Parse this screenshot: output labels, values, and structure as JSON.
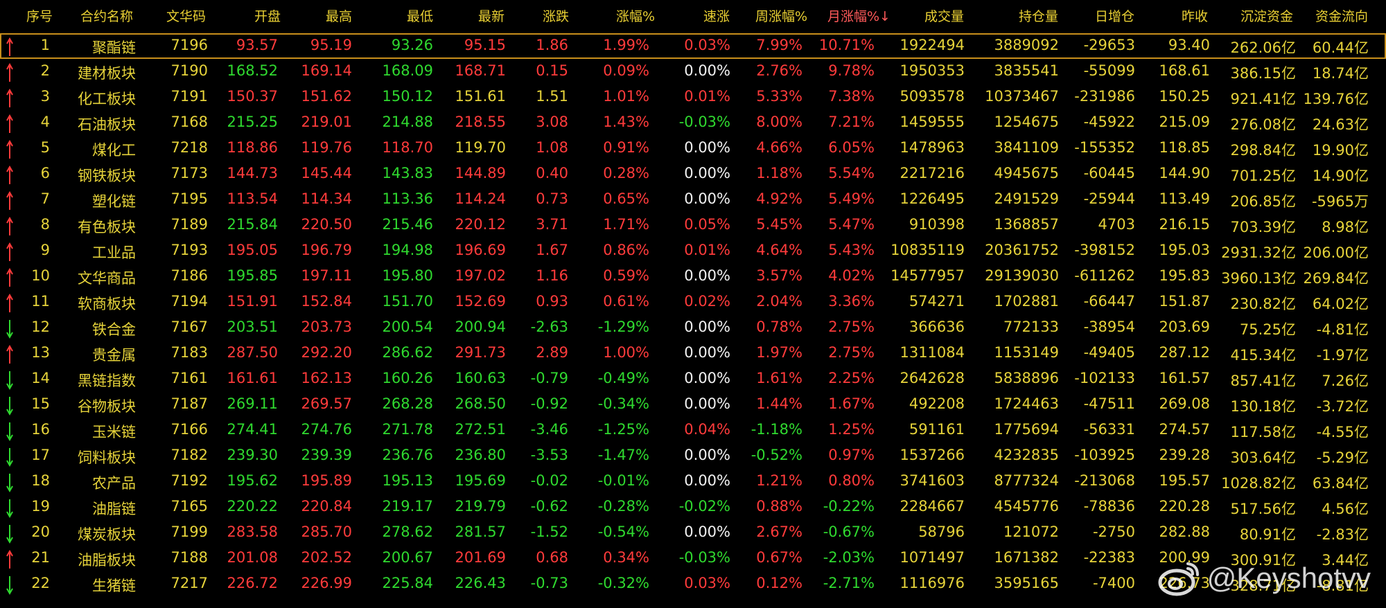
{
  "columns": [
    "序号",
    "合约名称",
    "文华码",
    "开盘",
    "最高",
    "最低",
    "最新",
    "涨跌",
    "涨幅%",
    "速涨",
    "周涨幅%",
    "月涨幅%↓",
    "成交量",
    "持仓量",
    "日增仓",
    "昨收",
    "沉淀资金",
    "资金流向"
  ],
  "rows": [
    {
      "dir": "up",
      "no": "1",
      "name": "聚酯链",
      "code": "7196",
      "open": "93.57",
      "high": "95.19",
      "low": "93.26",
      "last": "95.15",
      "chg": "1.86",
      "pct": "1.99%",
      "speed": "0.03%",
      "week": "7.99%",
      "month": "10.71%",
      "vol": "1922494",
      "oi": "3889092",
      "inc": "-29653",
      "prev": "93.40",
      "cap": "262.06亿",
      "flow": "60.44亿",
      "c": {
        "open": "r",
        "high": "r",
        "low": "g",
        "last": "r",
        "chg": "r",
        "pct": "r",
        "speed": "r",
        "week": "r",
        "month": "r"
      }
    },
    {
      "dir": "up",
      "no": "2",
      "name": "建材板块",
      "code": "7190",
      "open": "168.52",
      "high": "169.14",
      "low": "168.09",
      "last": "168.71",
      "chg": "0.15",
      "pct": "0.09%",
      "speed": "0.00%",
      "week": "2.76%",
      "month": "9.78%",
      "vol": "1950353",
      "oi": "3835541",
      "inc": "-55099",
      "prev": "168.61",
      "cap": "386.15亿",
      "flow": "18.74亿",
      "c": {
        "open": "g",
        "high": "r",
        "low": "g",
        "last": "r",
        "chg": "r",
        "pct": "r",
        "speed": "w",
        "week": "r",
        "month": "r"
      }
    },
    {
      "dir": "up",
      "no": "3",
      "name": "化工板块",
      "code": "7191",
      "open": "150.37",
      "high": "151.62",
      "low": "150.12",
      "last": "151.61",
      "chg": "1.51",
      "pct": "1.01%",
      "speed": "0.01%",
      "week": "5.33%",
      "month": "7.38%",
      "vol": "5093578",
      "oi": "10373467",
      "inc": "-231986",
      "prev": "150.25",
      "cap": "921.41亿",
      "flow": "139.76亿",
      "c": {
        "open": "r",
        "high": "r",
        "low": "g",
        "last": "y",
        "chg": "y",
        "pct": "r",
        "speed": "r",
        "week": "r",
        "month": "r"
      }
    },
    {
      "dir": "up",
      "no": "4",
      "name": "石油板块",
      "code": "7168",
      "open": "215.25",
      "high": "219.01",
      "low": "214.88",
      "last": "218.55",
      "chg": "3.08",
      "pct": "1.43%",
      "speed": "-0.03%",
      "week": "8.00%",
      "month": "7.21%",
      "vol": "1459555",
      "oi": "1254675",
      "inc": "-45922",
      "prev": "215.09",
      "cap": "276.08亿",
      "flow": "24.63亿",
      "c": {
        "open": "g",
        "high": "r",
        "low": "g",
        "last": "r",
        "chg": "r",
        "pct": "r",
        "speed": "g",
        "week": "r",
        "month": "r"
      }
    },
    {
      "dir": "up",
      "no": "5",
      "name": "煤化工",
      "code": "7218",
      "open": "118.86",
      "high": "119.76",
      "low": "118.70",
      "last": "119.70",
      "chg": "1.08",
      "pct": "0.91%",
      "speed": "0.00%",
      "week": "4.66%",
      "month": "6.05%",
      "vol": "1478963",
      "oi": "3841109",
      "inc": "-155352",
      "prev": "118.85",
      "cap": "298.84亿",
      "flow": "19.90亿",
      "c": {
        "open": "r",
        "high": "r",
        "low": "r",
        "last": "y",
        "chg": "r",
        "pct": "r",
        "speed": "w",
        "week": "r",
        "month": "r"
      }
    },
    {
      "dir": "up",
      "no": "6",
      "name": "钢铁板块",
      "code": "7173",
      "open": "144.73",
      "high": "145.44",
      "low": "143.83",
      "last": "144.89",
      "chg": "0.40",
      "pct": "0.28%",
      "speed": "0.00%",
      "week": "1.18%",
      "month": "5.54%",
      "vol": "2217216",
      "oi": "4945675",
      "inc": "-60445",
      "prev": "144.90",
      "cap": "701.25亿",
      "flow": "14.90亿",
      "c": {
        "open": "r",
        "high": "r",
        "low": "g",
        "last": "r",
        "chg": "r",
        "pct": "r",
        "speed": "w",
        "week": "r",
        "month": "r"
      }
    },
    {
      "dir": "up",
      "no": "7",
      "name": "塑化链",
      "code": "7195",
      "open": "113.54",
      "high": "114.34",
      "low": "113.36",
      "last": "114.24",
      "chg": "0.73",
      "pct": "0.65%",
      "speed": "0.00%",
      "week": "4.92%",
      "month": "5.49%",
      "vol": "1226495",
      "oi": "2491529",
      "inc": "-25944",
      "prev": "113.49",
      "cap": "206.85亿",
      "flow": "-5965万",
      "c": {
        "open": "r",
        "high": "r",
        "low": "g",
        "last": "r",
        "chg": "r",
        "pct": "r",
        "speed": "w",
        "week": "r",
        "month": "r"
      }
    },
    {
      "dir": "up",
      "no": "8",
      "name": "有色板块",
      "code": "7189",
      "open": "215.84",
      "high": "220.50",
      "low": "215.46",
      "last": "220.12",
      "chg": "3.71",
      "pct": "1.71%",
      "speed": "0.05%",
      "week": "5.45%",
      "month": "5.47%",
      "vol": "910398",
      "oi": "1368857",
      "inc": "4703",
      "prev": "216.15",
      "cap": "703.39亿",
      "flow": "8.98亿",
      "c": {
        "open": "g",
        "high": "r",
        "low": "g",
        "last": "r",
        "chg": "r",
        "pct": "r",
        "speed": "r",
        "week": "r",
        "month": "r"
      }
    },
    {
      "dir": "up",
      "no": "9",
      "name": "工业品",
      "code": "7193",
      "open": "195.05",
      "high": "196.79",
      "low": "194.98",
      "last": "196.69",
      "chg": "1.67",
      "pct": "0.86%",
      "speed": "0.01%",
      "week": "4.64%",
      "month": "5.43%",
      "vol": "10835119",
      "oi": "20361752",
      "inc": "-398152",
      "prev": "195.03",
      "cap": "2931.32亿",
      "flow": "206.00亿",
      "c": {
        "open": "r",
        "high": "r",
        "low": "g",
        "last": "r",
        "chg": "r",
        "pct": "r",
        "speed": "r",
        "week": "r",
        "month": "r"
      }
    },
    {
      "dir": "up",
      "no": "10",
      "name": "文华商品",
      "code": "7186",
      "open": "195.85",
      "high": "197.11",
      "low": "195.80",
      "last": "197.02",
      "chg": "1.16",
      "pct": "0.59%",
      "speed": "0.00%",
      "week": "3.57%",
      "month": "4.02%",
      "vol": "14577957",
      "oi": "29139030",
      "inc": "-611262",
      "prev": "195.83",
      "cap": "3960.13亿",
      "flow": "269.84亿",
      "c": {
        "open": "g",
        "high": "r",
        "low": "g",
        "last": "r",
        "chg": "r",
        "pct": "r",
        "speed": "w",
        "week": "r",
        "month": "r"
      }
    },
    {
      "dir": "up",
      "no": "11",
      "name": "软商板块",
      "code": "7194",
      "open": "151.91",
      "high": "152.84",
      "low": "151.70",
      "last": "152.69",
      "chg": "0.93",
      "pct": "0.61%",
      "speed": "0.02%",
      "week": "2.04%",
      "month": "3.36%",
      "vol": "574271",
      "oi": "1702881",
      "inc": "-66447",
      "prev": "151.87",
      "cap": "230.82亿",
      "flow": "64.02亿",
      "c": {
        "open": "r",
        "high": "r",
        "low": "g",
        "last": "r",
        "chg": "r",
        "pct": "r",
        "speed": "r",
        "week": "r",
        "month": "r"
      }
    },
    {
      "dir": "down",
      "no": "12",
      "name": "铁合金",
      "code": "7167",
      "open": "203.51",
      "high": "203.73",
      "low": "200.54",
      "last": "200.94",
      "chg": "-2.63",
      "pct": "-1.29%",
      "speed": "0.00%",
      "week": "0.78%",
      "month": "2.75%",
      "vol": "366636",
      "oi": "772133",
      "inc": "-38954",
      "prev": "203.69",
      "cap": "75.25亿",
      "flow": "-4.81亿",
      "c": {
        "open": "g",
        "high": "r",
        "low": "g",
        "last": "g",
        "chg": "g",
        "pct": "g",
        "speed": "w",
        "week": "r",
        "month": "r"
      }
    },
    {
      "dir": "up",
      "no": "13",
      "name": "贵金属",
      "code": "7183",
      "open": "287.50",
      "high": "292.20",
      "low": "286.62",
      "last": "291.73",
      "chg": "2.89",
      "pct": "1.00%",
      "speed": "0.00%",
      "week": "1.97%",
      "month": "2.75%",
      "vol": "1311084",
      "oi": "1153149",
      "inc": "-49405",
      "prev": "287.12",
      "cap": "415.34亿",
      "flow": "-1.97亿",
      "c": {
        "open": "r",
        "high": "r",
        "low": "g",
        "last": "r",
        "chg": "r",
        "pct": "r",
        "speed": "w",
        "week": "r",
        "month": "r"
      }
    },
    {
      "dir": "down",
      "no": "14",
      "name": "黑链指数",
      "code": "7161",
      "open": "161.61",
      "high": "162.13",
      "low": "160.26",
      "last": "160.63",
      "chg": "-0.79",
      "pct": "-0.49%",
      "speed": "0.00%",
      "week": "1.61%",
      "month": "2.25%",
      "vol": "2642628",
      "oi": "5838896",
      "inc": "-102133",
      "prev": "161.57",
      "cap": "857.41亿",
      "flow": "7.26亿",
      "c": {
        "open": "r",
        "high": "r",
        "low": "g",
        "last": "g",
        "chg": "g",
        "pct": "g",
        "speed": "w",
        "week": "r",
        "month": "r"
      }
    },
    {
      "dir": "down",
      "no": "15",
      "name": "谷物板块",
      "code": "7187",
      "open": "269.11",
      "high": "269.57",
      "low": "268.28",
      "last": "268.50",
      "chg": "-0.92",
      "pct": "-0.34%",
      "speed": "0.00%",
      "week": "1.44%",
      "month": "1.67%",
      "vol": "492208",
      "oi": "1724463",
      "inc": "-47511",
      "prev": "269.08",
      "cap": "130.18亿",
      "flow": "-3.72亿",
      "c": {
        "open": "g",
        "high": "r",
        "low": "g",
        "last": "g",
        "chg": "g",
        "pct": "g",
        "speed": "w",
        "week": "r",
        "month": "r"
      }
    },
    {
      "dir": "down",
      "no": "16",
      "name": "玉米链",
      "code": "7166",
      "open": "274.41",
      "high": "274.76",
      "low": "271.78",
      "last": "272.51",
      "chg": "-3.46",
      "pct": "-1.25%",
      "speed": "0.04%",
      "week": "-1.18%",
      "month": "1.25%",
      "vol": "591161",
      "oi": "1775694",
      "inc": "-56331",
      "prev": "274.57",
      "cap": "117.58亿",
      "flow": "-4.55亿",
      "c": {
        "open": "g",
        "high": "g",
        "low": "g",
        "last": "g",
        "chg": "g",
        "pct": "g",
        "speed": "r",
        "week": "g",
        "month": "r"
      }
    },
    {
      "dir": "down",
      "no": "17",
      "name": "饲料板块",
      "code": "7182",
      "open": "239.30",
      "high": "239.39",
      "low": "236.76",
      "last": "236.80",
      "chg": "-3.53",
      "pct": "-1.47%",
      "speed": "0.00%",
      "week": "-0.52%",
      "month": "0.97%",
      "vol": "1537266",
      "oi": "4232835",
      "inc": "-103925",
      "prev": "239.28",
      "cap": "303.64亿",
      "flow": "-5.29亿",
      "c": {
        "open": "g",
        "high": "g",
        "low": "g",
        "last": "g",
        "chg": "g",
        "pct": "g",
        "speed": "w",
        "week": "g",
        "month": "r"
      }
    },
    {
      "dir": "down",
      "no": "18",
      "name": "农产品",
      "code": "7192",
      "open": "195.62",
      "high": "195.89",
      "low": "195.13",
      "last": "195.69",
      "chg": "-0.02",
      "pct": "-0.01%",
      "speed": "0.00%",
      "week": "1.21%",
      "month": "0.80%",
      "vol": "3741603",
      "oi": "8777324",
      "inc": "-213068",
      "prev": "195.57",
      "cap": "1028.82亿",
      "flow": "63.84亿",
      "c": {
        "open": "g",
        "high": "r",
        "low": "g",
        "last": "g",
        "chg": "g",
        "pct": "g",
        "speed": "w",
        "week": "r",
        "month": "r"
      }
    },
    {
      "dir": "down",
      "no": "19",
      "name": "油脂链",
      "code": "7165",
      "open": "220.22",
      "high": "220.84",
      "low": "219.17",
      "last": "219.79",
      "chg": "-0.62",
      "pct": "-0.28%",
      "speed": "-0.02%",
      "week": "0.88%",
      "month": "-0.22%",
      "vol": "2284667",
      "oi": "4545776",
      "inc": "-78836",
      "prev": "220.28",
      "cap": "517.56亿",
      "flow": "4.56亿",
      "c": {
        "open": "g",
        "high": "r",
        "low": "g",
        "last": "g",
        "chg": "g",
        "pct": "g",
        "speed": "g",
        "week": "r",
        "month": "g"
      }
    },
    {
      "dir": "down",
      "no": "20",
      "name": "煤炭板块",
      "code": "7199",
      "open": "283.58",
      "high": "285.70",
      "low": "278.62",
      "last": "281.57",
      "chg": "-1.52",
      "pct": "-0.54%",
      "speed": "0.00%",
      "week": "2.67%",
      "month": "-0.67%",
      "vol": "58796",
      "oi": "121072",
      "inc": "-2750",
      "prev": "282.88",
      "cap": "80.91亿",
      "flow": "-2.83亿",
      "c": {
        "open": "r",
        "high": "r",
        "low": "g",
        "last": "g",
        "chg": "g",
        "pct": "g",
        "speed": "w",
        "week": "r",
        "month": "g"
      }
    },
    {
      "dir": "up",
      "no": "21",
      "name": "油脂板块",
      "code": "7188",
      "open": "201.08",
      "high": "202.52",
      "low": "200.67",
      "last": "201.69",
      "chg": "0.68",
      "pct": "0.34%",
      "speed": "-0.03%",
      "week": "0.67%",
      "month": "-2.03%",
      "vol": "1071497",
      "oi": "1671382",
      "inc": "-22383",
      "prev": "200.99",
      "cap": "300.91亿",
      "flow": "3.44亿",
      "c": {
        "open": "r",
        "high": "r",
        "low": "g",
        "last": "r",
        "chg": "r",
        "pct": "r",
        "speed": "g",
        "week": "r",
        "month": "g"
      }
    },
    {
      "dir": "down",
      "no": "22",
      "name": "生猪链",
      "code": "7217",
      "open": "226.72",
      "high": "226.99",
      "low": "225.84",
      "last": "226.43",
      "chg": "-0.73",
      "pct": "-0.32%",
      "speed": "0.03%",
      "week": "0.12%",
      "month": "-2.71%",
      "vol": "1116976",
      "oi": "3595165",
      "inc": "-7400",
      "prev": "226.73",
      "cap": "328.71亿",
      "flow": "-8.81亿",
      "c": {
        "open": "r",
        "high": "r",
        "low": "g",
        "last": "g",
        "chg": "g",
        "pct": "g",
        "speed": "r",
        "week": "r",
        "month": "g"
      }
    }
  ],
  "watermark": "@Keyshotvv",
  "colors": {
    "yellow": "#e6d33a",
    "red": "#ff3b3b",
    "green": "#2fd92f",
    "white": "#f2f2f2",
    "selection": "#c88f1b"
  }
}
